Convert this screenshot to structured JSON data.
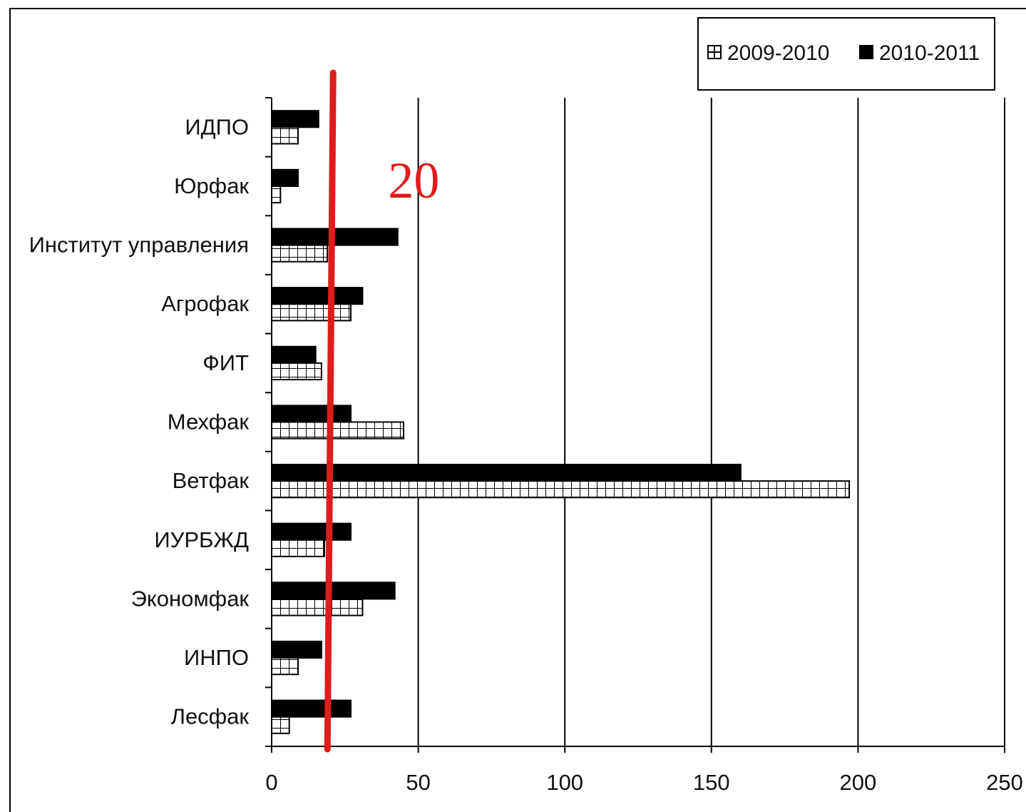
{
  "chart_data": {
    "type": "bar",
    "orientation": "horizontal",
    "title": "",
    "xlabel": "",
    "ylabel": "",
    "categories": [
      "ИДПО",
      "Юрфак",
      "Институт управления",
      "Агрофак",
      "ФИТ",
      "Мехфак",
      "Ветфак",
      "ИУРБЖД",
      "Экономфак",
      "ИНПО",
      "Лесфак"
    ],
    "series": [
      {
        "name": "2009-2010",
        "values": [
          9,
          3,
          19,
          27,
          17,
          45,
          197,
          18,
          31,
          9,
          6
        ],
        "pattern": "grid",
        "color": "#000000"
      },
      {
        "name": "2010-2011",
        "values": [
          16,
          9,
          43,
          31,
          15,
          27,
          160,
          27,
          42,
          17,
          27
        ],
        "pattern": "solid",
        "color": "#000000"
      }
    ],
    "xlim": [
      0,
      250
    ],
    "x_ticks": [
      "0",
      "50",
      "100",
      "150",
      "200",
      "250"
    ],
    "grid": "vertical",
    "legend_position": "top-right",
    "threshold": {
      "value": 20,
      "label": "20",
      "color": "#dd1c1c"
    }
  }
}
